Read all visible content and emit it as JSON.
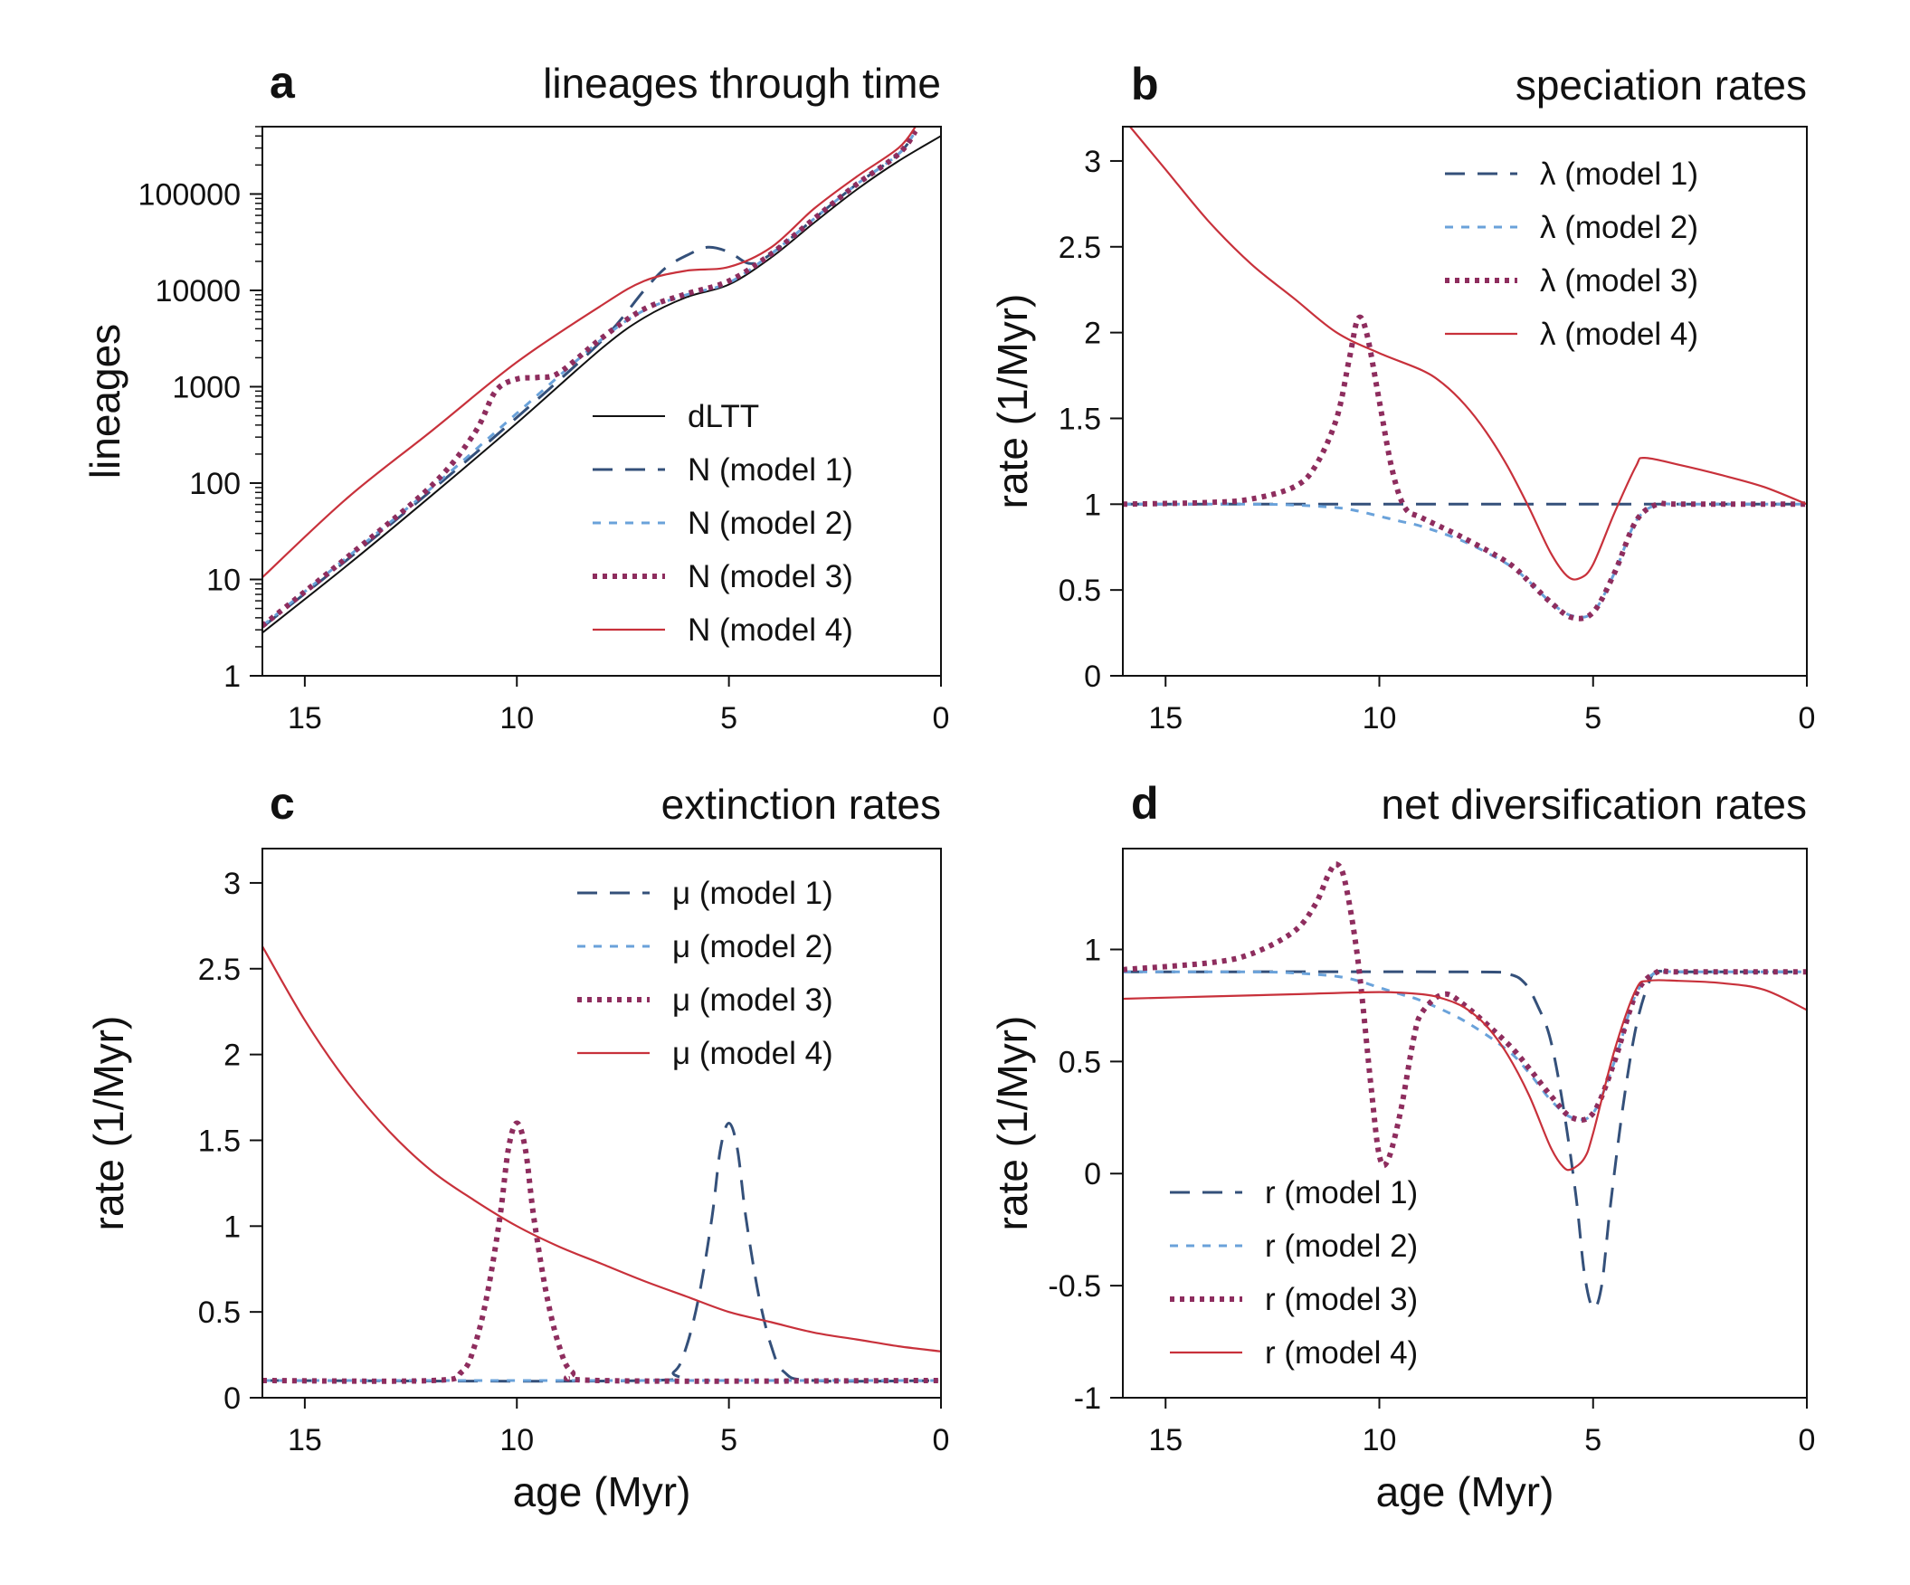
{
  "figure": {
    "caption": ""
  },
  "styles": {
    "dLTT": {
      "color": "#111111",
      "dash": "none",
      "width": 2
    },
    "m1": {
      "color": "#34507a",
      "dash": "22 14",
      "width": 3
    },
    "m2": {
      "color": "#6aa2da",
      "dash": "9 9",
      "width": 3
    },
    "m3": {
      "color": "#8e2d5e",
      "dash": "5 6",
      "width": 6
    },
    "m4": {
      "color": "#c8313b",
      "dash": "none",
      "width": 2.2
    }
  },
  "chart_data": [
    {
      "id": "a",
      "panel_label": "a",
      "type": "line",
      "title": "lineages through time",
      "xlabel": "",
      "ylabel": "lineages",
      "yscale": "log",
      "xlim": [
        16,
        0
      ],
      "ylim": [
        1,
        500000
      ],
      "xticks": [
        15,
        10,
        5,
        0
      ],
      "yticks": [
        1,
        10,
        100,
        1000,
        10000,
        100000
      ],
      "legend_position": "bottom-right",
      "series": [
        {
          "key": "dLTT",
          "name": "dLTT",
          "style": "dLTT",
          "x": [
            16,
            14,
            12,
            10,
            8,
            7,
            6,
            5,
            4,
            3,
            2,
            1,
            0
          ],
          "y": [
            2.8,
            14,
            75,
            420,
            2500,
            5200,
            8500,
            11500,
            22000,
            50000,
            110000,
            220000,
            400000
          ]
        },
        {
          "key": "m1",
          "name": "N (model 1)",
          "style": "m1",
          "x": [
            16,
            14,
            12,
            10,
            8,
            7,
            6.5,
            6,
            5.5,
            5,
            4.5,
            4,
            3,
            2,
            1,
            0.6
          ],
          "y": [
            3.2,
            16,
            85,
            480,
            3000,
            10000,
            17000,
            23000,
            28000,
            25000,
            19000,
            24000,
            55000,
            125000,
            260000,
            450000
          ]
        },
        {
          "key": "m2",
          "name": "N (model 2)",
          "style": "m2",
          "x": [
            16,
            14,
            12,
            10,
            8,
            7,
            6,
            5,
            4,
            3,
            2,
            1,
            0.6
          ],
          "y": [
            3.3,
            17,
            90,
            530,
            3100,
            6200,
            9000,
            12000,
            24000,
            55000,
            125000,
            260000,
            450000
          ]
        },
        {
          "key": "m3",
          "name": "N (model 3)",
          "style": "m3",
          "x": [
            16,
            14,
            12,
            11,
            10.5,
            10,
            9.5,
            9,
            8,
            7,
            6,
            5,
            4,
            3,
            2,
            1,
            0.6
          ],
          "y": [
            3.3,
            17,
            95,
            330,
            900,
            1200,
            1250,
            1400,
            3200,
            6400,
            9200,
            12500,
            24000,
            55000,
            125000,
            260000,
            450000
          ]
        },
        {
          "key": "m4",
          "name": "N (model 4)",
          "style": "m4",
          "x": [
            16,
            14,
            12,
            10,
            8,
            7,
            6,
            5,
            4,
            3,
            2,
            1,
            0.6
          ],
          "y": [
            10.5,
            70,
            350,
            1800,
            7000,
            12500,
            16000,
            17500,
            28000,
            70000,
            150000,
            300000,
            500000
          ]
        }
      ]
    },
    {
      "id": "b",
      "panel_label": "b",
      "type": "line",
      "title": "speciation rates",
      "xlabel": "",
      "ylabel": "rate (1/Myr)",
      "xlim": [
        16,
        0
      ],
      "ylim": [
        0,
        3.2
      ],
      "xticks": [
        15,
        10,
        5,
        0
      ],
      "yticks": [
        0,
        0.5,
        1,
        1.5,
        2,
        2.5,
        3
      ],
      "legend_position": "top-right",
      "series": [
        {
          "key": "m1",
          "name": "λ (model 1)",
          "style": "m1",
          "x": [
            16,
            12,
            8,
            4,
            0
          ],
          "y": [
            1,
            1,
            1,
            1,
            1
          ]
        },
        {
          "key": "m2",
          "name": "λ (model 2)",
          "style": "m2",
          "x": [
            16,
            13,
            12,
            11,
            10.5,
            10,
            9.5,
            9,
            8,
            7,
            6.5,
            6,
            5.5,
            5,
            4.5,
            4,
            3.5,
            3,
            0
          ],
          "y": [
            1,
            1,
            0.995,
            0.98,
            0.96,
            0.93,
            0.9,
            0.87,
            0.78,
            0.65,
            0.55,
            0.43,
            0.35,
            0.37,
            0.6,
            0.9,
            1,
            1,
            1
          ]
        },
        {
          "key": "m3",
          "name": "λ (model 3)",
          "style": "m3",
          "x": [
            16,
            14,
            13,
            12,
            11.5,
            11,
            10.7,
            10.5,
            10.3,
            10,
            9.7,
            9.4,
            9,
            8,
            7,
            6.5,
            6,
            5.5,
            5,
            4.5,
            4,
            3.5,
            3,
            0
          ],
          "y": [
            1,
            1.01,
            1.03,
            1.1,
            1.22,
            1.5,
            1.85,
            2.08,
            2.0,
            1.6,
            1.2,
            0.98,
            0.92,
            0.8,
            0.66,
            0.55,
            0.43,
            0.34,
            0.37,
            0.6,
            0.9,
            1,
            1,
            1
          ]
        },
        {
          "key": "m4",
          "name": "λ (model 4)",
          "style": "m4",
          "x": [
            16,
            15,
            14,
            13,
            12,
            11,
            10,
            9,
            8.5,
            8,
            7.5,
            7,
            6.5,
            6,
            5.6,
            5.3,
            5,
            4.5,
            4,
            3.8,
            3,
            2,
            1,
            0
          ],
          "y": [
            3.25,
            2.95,
            2.65,
            2.4,
            2.2,
            2.0,
            1.88,
            1.78,
            1.7,
            1.58,
            1.42,
            1.22,
            0.98,
            0.72,
            0.58,
            0.57,
            0.65,
            0.95,
            1.22,
            1.27,
            1.23,
            1.17,
            1.1,
            1.0
          ]
        }
      ]
    },
    {
      "id": "c",
      "panel_label": "c",
      "type": "line",
      "title": "extinction rates",
      "xlabel": "age (Myr)",
      "ylabel": "rate (1/Myr)",
      "xlim": [
        16,
        0
      ],
      "ylim": [
        0,
        3.2
      ],
      "xticks": [
        15,
        10,
        5,
        0
      ],
      "yticks": [
        0,
        0.5,
        1,
        1.5,
        2,
        2.5,
        3
      ],
      "legend_position": "top-right",
      "series": [
        {
          "key": "m1",
          "name": "μ (model 1)",
          "style": "m1",
          "x": [
            16,
            7,
            6.3,
            6,
            5.7,
            5.4,
            5.2,
            5,
            4.8,
            4.6,
            4.3,
            4,
            3.7,
            3,
            0
          ],
          "y": [
            0.1,
            0.1,
            0.15,
            0.3,
            0.6,
            1.05,
            1.45,
            1.6,
            1.45,
            1.05,
            0.6,
            0.3,
            0.15,
            0.1,
            0.1
          ]
        },
        {
          "key": "m2",
          "name": "μ (model 2)",
          "style": "m2",
          "x": [
            16,
            8,
            4,
            0
          ],
          "y": [
            0.1,
            0.1,
            0.1,
            0.1
          ]
        },
        {
          "key": "m3",
          "name": "μ (model 3)",
          "style": "m3",
          "x": [
            16,
            12,
            11.3,
            11,
            10.7,
            10.4,
            10.2,
            10,
            9.8,
            9.6,
            9.3,
            9,
            8.7,
            8,
            0
          ],
          "y": [
            0.1,
            0.1,
            0.15,
            0.3,
            0.6,
            1.05,
            1.45,
            1.6,
            1.45,
            1.05,
            0.6,
            0.3,
            0.15,
            0.1,
            0.1
          ]
        },
        {
          "key": "m4",
          "name": "μ (model 4)",
          "style": "m4",
          "x": [
            16,
            15,
            14,
            13,
            12,
            11,
            10,
            9,
            8,
            7,
            6,
            5,
            4,
            3,
            2,
            1,
            0
          ],
          "y": [
            2.63,
            2.2,
            1.84,
            1.55,
            1.32,
            1.15,
            1.0,
            0.88,
            0.78,
            0.68,
            0.59,
            0.5,
            0.44,
            0.38,
            0.34,
            0.3,
            0.27
          ]
        }
      ]
    },
    {
      "id": "d",
      "panel_label": "d",
      "type": "line",
      "title": "net diversification rates",
      "xlabel": "age (Myr)",
      "ylabel": "rate (1/Myr)",
      "xlim": [
        16,
        0
      ],
      "ylim": [
        -1,
        1.45
      ],
      "xticks": [
        15,
        10,
        5,
        0
      ],
      "yticks": [
        -1,
        -0.5,
        0,
        0.5,
        1
      ],
      "legend_position": "bottom-left",
      "series": [
        {
          "key": "m1",
          "name": "r (model 1)",
          "style": "m1",
          "x": [
            16,
            8,
            7,
            6.6,
            6.3,
            6,
            5.7,
            5.4,
            5.2,
            5,
            4.8,
            4.6,
            4.3,
            4,
            3.7,
            3.5,
            3,
            0
          ],
          "y": [
            0.9,
            0.9,
            0.89,
            0.85,
            0.75,
            0.6,
            0.3,
            -0.1,
            -0.45,
            -0.6,
            -0.5,
            -0.15,
            0.3,
            0.65,
            0.85,
            0.9,
            0.9,
            0.9
          ]
        },
        {
          "key": "m2",
          "name": "r (model 2)",
          "style": "m2",
          "x": [
            16,
            13,
            12,
            11,
            10.5,
            10,
            9.5,
            9,
            8,
            7,
            6.5,
            6,
            5.5,
            5,
            4.5,
            4,
            3.5,
            3,
            0
          ],
          "y": [
            0.9,
            0.9,
            0.895,
            0.88,
            0.86,
            0.83,
            0.8,
            0.77,
            0.68,
            0.55,
            0.45,
            0.33,
            0.25,
            0.27,
            0.5,
            0.8,
            0.9,
            0.9,
            0.9
          ]
        },
        {
          "key": "m3",
          "name": "r (model 3)",
          "style": "m3",
          "x": [
            16,
            14,
            13,
            12,
            11.5,
            11.2,
            11,
            10.8,
            10.5,
            10.2,
            10,
            9.8,
            9.5,
            9.2,
            9,
            8.5,
            8,
            7,
            6.5,
            6,
            5.5,
            5,
            4.5,
            4,
            3.5,
            3,
            0
          ],
          "y": [
            0.91,
            0.94,
            0.98,
            1.08,
            1.2,
            1.33,
            1.38,
            1.3,
            0.95,
            0.4,
            0.08,
            0.06,
            0.28,
            0.6,
            0.72,
            0.8,
            0.75,
            0.58,
            0.47,
            0.35,
            0.25,
            0.27,
            0.5,
            0.8,
            0.9,
            0.9,
            0.9
          ]
        },
        {
          "key": "m4",
          "name": "r (model 4)",
          "style": "m4",
          "x": [
            16,
            14,
            12,
            10,
            9,
            8.5,
            8,
            7.5,
            7,
            6.5,
            6,
            5.7,
            5.5,
            5.2,
            5,
            4.5,
            4,
            3.7,
            3,
            2,
            1,
            0
          ],
          "y": [
            0.78,
            0.79,
            0.8,
            0.81,
            0.8,
            0.78,
            0.74,
            0.66,
            0.53,
            0.35,
            0.12,
            0.03,
            0.02,
            0.07,
            0.18,
            0.55,
            0.82,
            0.86,
            0.86,
            0.85,
            0.82,
            0.73
          ]
        }
      ]
    }
  ]
}
